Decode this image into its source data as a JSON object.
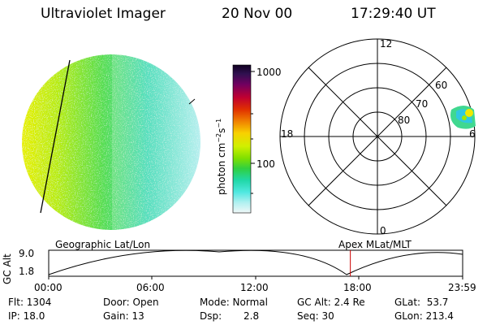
{
  "header": {
    "title": "Ultraviolet Imager",
    "date": "20 Nov 00",
    "time": "17:29:40 UT"
  },
  "colorbar": {
    "unit_prefix": "photon cm",
    "unit_exp1": "−2",
    "unit_mid": "s",
    "unit_exp2": "−1",
    "tick_1000": "1000",
    "tick_100": "100"
  },
  "polar_plot": {
    "label_12": "12",
    "label_18": "18",
    "label_6": "6",
    "label_0": "0",
    "label_60": "60",
    "label_70": "70",
    "label_80": "80"
  },
  "orbit_panel": {
    "left_title": "Geographic Lat/Lon",
    "right_title": "Apex MLat/MLT",
    "ylabel": "GC Alt",
    "ytick_top": "9.0",
    "ytick_bottom": "1.8",
    "time_ticks": [
      "00:00",
      "06:00",
      "12:00",
      "18:00",
      "23:59"
    ],
    "current_time_fraction": 0.7287,
    "marker_color": "#cc0000"
  },
  "footer": {
    "flt": "Flt: 1304",
    "ip": "IP: 18.0",
    "door": "Door: Open",
    "gain": "Gain: 13",
    "mode": "Mode: Normal",
    "dsp_label": "Dsp:",
    "dsp_value": "2.8",
    "gcalt": "GC Alt: 2.4 Re",
    "seq": "Seq: 30",
    "glat": "GLat:  53.7",
    "glon": "GLon: 213.4"
  }
}
